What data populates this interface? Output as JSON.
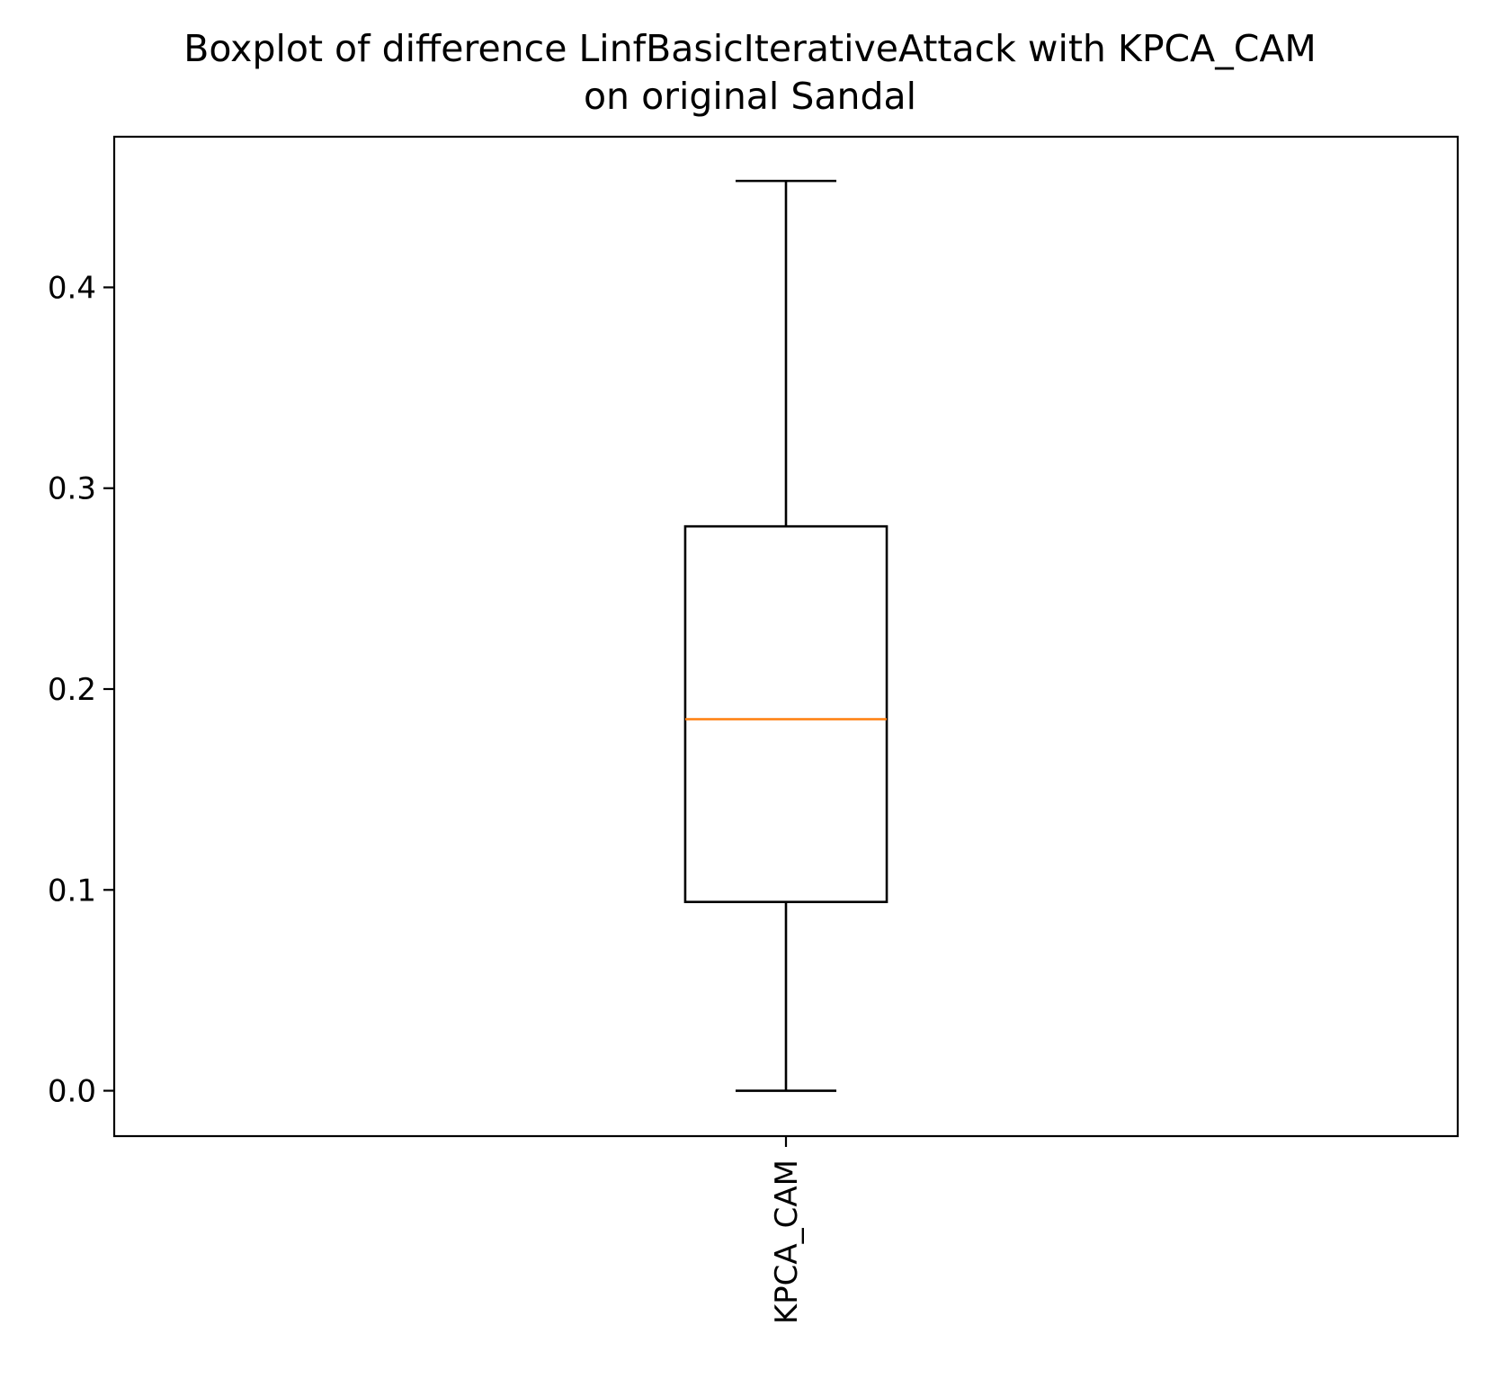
{
  "chart_data": {
    "type": "box",
    "title_lines": [
      "Boxplot of difference LinfBasicIterativeAttack with KPCA_CAM",
      "on original Sandal"
    ],
    "categories": [
      "KPCA_CAM"
    ],
    "boxes": [
      {
        "category": "KPCA_CAM",
        "whisker_low": 0.0,
        "q1": 0.094,
        "median": 0.185,
        "q3": 0.281,
        "whisker_high": 0.453
      }
    ],
    "y_ticks": [
      0.0,
      0.1,
      0.2,
      0.3,
      0.4
    ],
    "y_tick_labels": [
      "0.0",
      "0.1",
      "0.2",
      "0.3",
      "0.4"
    ],
    "ylim": [
      -0.0226,
      0.475
    ],
    "xlabel": "",
    "ylabel": "",
    "grid": false,
    "colors": {
      "box": "#000000",
      "median": "#ff7f0e",
      "axes": "#000000"
    }
  }
}
